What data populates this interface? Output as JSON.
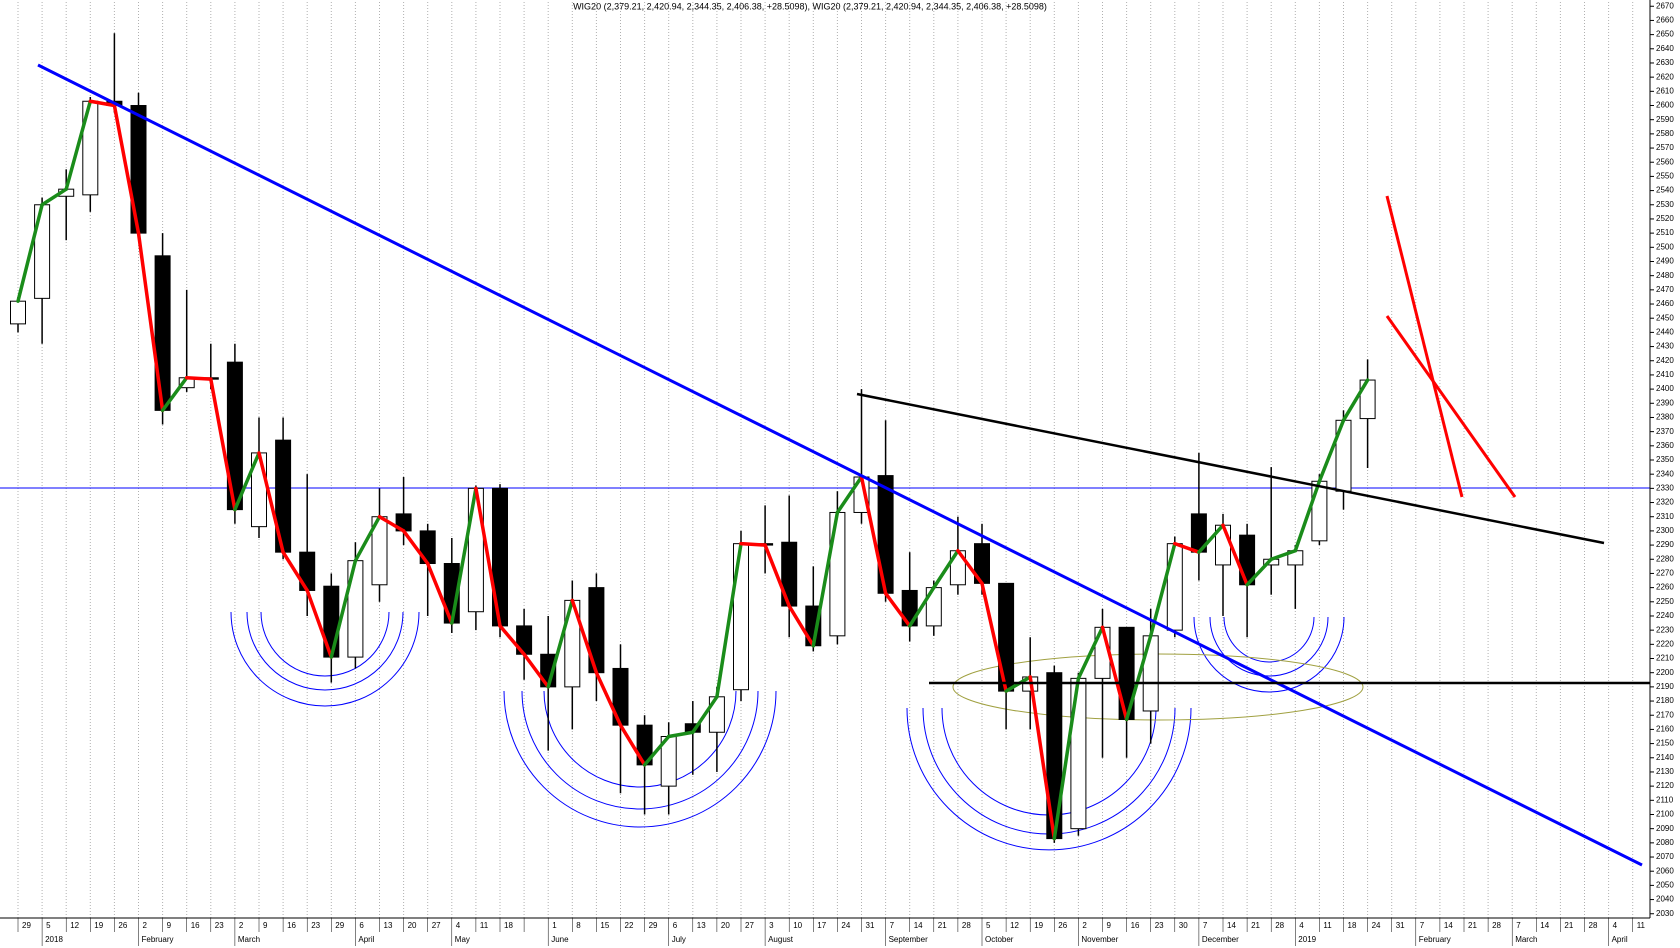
{
  "chart_data": {
    "type": "candlestick",
    "title": "WIG20 (2,379.21, 2,420.94, 2,344.35, 2,406.38, +28.5098), WIG20 (2,379.21, 2,420.94, 2,344.35, 2,406.38, +28.5098)",
    "categories": [
      "29",
      "5",
      "12",
      "19",
      "26",
      "2",
      "9",
      "16",
      "23",
      "2",
      "9",
      "16",
      "23",
      "29",
      "6",
      "13",
      "20",
      "27",
      "4",
      "11",
      "18",
      null,
      "1",
      "8",
      "15",
      "22",
      "29",
      "6",
      "13",
      "20",
      "27",
      "3",
      "10",
      "17",
      "24",
      "31",
      "7",
      "14",
      "21",
      "28",
      "5",
      "12",
      "19",
      "26",
      "2",
      "9",
      "16",
      "23",
      "30",
      "7",
      "14",
      "21",
      "28",
      "4",
      "11",
      "18",
      "24",
      "31",
      "7",
      "14",
      "21",
      "28",
      "7",
      "14",
      "21",
      "28",
      "4",
      "11"
    ],
    "months": [
      {
        "index": 1,
        "label": "2018"
      },
      {
        "index": 5,
        "label": "February"
      },
      {
        "index": 9,
        "label": "March"
      },
      {
        "index": 14,
        "label": "April"
      },
      {
        "index": 18,
        "label": "May"
      },
      {
        "index": 22,
        "label": "June"
      },
      {
        "index": 27,
        "label": "July"
      },
      {
        "index": 31,
        "label": "August"
      },
      {
        "index": 36,
        "label": "September"
      },
      {
        "index": 40,
        "label": "October"
      },
      {
        "index": 44,
        "label": "November"
      },
      {
        "index": 49,
        "label": "December"
      },
      {
        "index": 53,
        "label": "2019"
      },
      {
        "index": 58,
        "label": "February"
      },
      {
        "index": 62,
        "label": "March"
      },
      {
        "index": 66,
        "label": "April"
      }
    ],
    "open": [
      2446,
      2464,
      2536,
      2537,
      2603,
      2600,
      2494,
      2401,
      2408,
      2419,
      2303,
      2364,
      2285,
      2261,
      2211,
      2262,
      2312,
      2300,
      2277,
      2243,
      2330,
      2233,
      2213,
      2190,
      2260,
      2203,
      2163,
      2120,
      2164,
      2158,
      2188,
      2291,
      2292,
      2247,
      2226,
      2313,
      2339,
      2258,
      2233,
      2262,
      2291,
      2263,
      2187,
      2200,
      2090,
      2196,
      2232,
      2173,
      2230,
      2312,
      2276,
      2297,
      2276,
      2276,
      2293,
      2328,
      2379.21,
      null,
      null,
      null,
      null,
      null,
      null,
      null,
      null,
      null,
      null,
      null
    ],
    "high": [
      2465,
      2535,
      2555,
      2606,
      2651,
      2609,
      2510,
      2470,
      2432,
      2432,
      2380,
      2380,
      2340,
      2270,
      2292,
      2330,
      2338,
      2305,
      2295,
      2332,
      2333,
      2245,
      2240,
      2265,
      2270,
      2220,
      2170,
      2165,
      2180,
      2190,
      2300,
      2318,
      2325,
      2275,
      2328,
      2400,
      2378,
      2285,
      2265,
      2310,
      2305,
      2262,
      2225,
      2205,
      2200,
      2245,
      2232,
      2245,
      2296,
      2355,
      2312,
      2305,
      2345,
      2290,
      2340,
      2385,
      2420.94,
      null,
      null,
      null,
      null,
      null,
      null,
      null,
      null,
      null,
      null,
      null
    ],
    "low": [
      2440,
      2432,
      2505,
      2525,
      2595,
      2508,
      2375,
      2398,
      2400,
      2305,
      2295,
      2280,
      2240,
      2193,
      2203,
      2250,
      2290,
      2240,
      2228,
      2230,
      2225,
      2195,
      2145,
      2160,
      2180,
      2115,
      2100,
      2100,
      2128,
      2130,
      2180,
      2270,
      2225,
      2215,
      2220,
      2305,
      2250,
      2222,
      2226,
      2255,
      2255,
      2160,
      2160,
      2080,
      2085,
      2140,
      2140,
      2150,
      2225,
      2265,
      2240,
      2225,
      2255,
      2245,
      2290,
      2315,
      2344.35,
      null,
      null,
      null,
      null,
      null,
      null,
      null,
      null,
      null,
      null,
      null
    ],
    "close": [
      2462,
      2530,
      2541,
      2603,
      2600,
      2510,
      2385,
      2408,
      2407,
      2315,
      2355,
      2285,
      2258,
      2211,
      2279,
      2310,
      2300,
      2277,
      2235,
      2330,
      2233,
      2213,
      2190,
      2251,
      2200,
      2163,
      2135,
      2155,
      2158,
      2183,
      2291,
      2290,
      2247,
      2219,
      2313,
      2338,
      2256,
      2233,
      2260,
      2286,
      2263,
      2187,
      2197,
      2083,
      2196,
      2232,
      2167,
      2226,
      2291,
      2285,
      2304,
      2262,
      2280,
      2286,
      2335,
      2378,
      2406.38,
      null,
      null,
      null,
      null,
      null,
      null,
      null,
      null,
      null,
      null,
      null
    ],
    "up_color": "#1a8c1a",
    "down_color": "#ff0000",
    "ylim": [
      2027,
      2673
    ],
    "yticks": [
      2030,
      2040,
      2050,
      2060,
      2070,
      2080,
      2090,
      2100,
      2110,
      2120,
      2130,
      2140,
      2150,
      2160,
      2170,
      2180,
      2190,
      2200,
      2210,
      2220,
      2230,
      2240,
      2250,
      2260,
      2270,
      2280,
      2290,
      2300,
      2310,
      2320,
      2330,
      2340,
      2350,
      2360,
      2370,
      2380,
      2390,
      2400,
      2410,
      2420,
      2430,
      2440,
      2450,
      2460,
      2470,
      2480,
      2490,
      2500,
      2510,
      2520,
      2530,
      2540,
      2550,
      2560,
      2570,
      2580,
      2590,
      2600,
      2610,
      2620,
      2630,
      2640,
      2650,
      2660,
      2670
    ],
    "grid": true
  }
}
